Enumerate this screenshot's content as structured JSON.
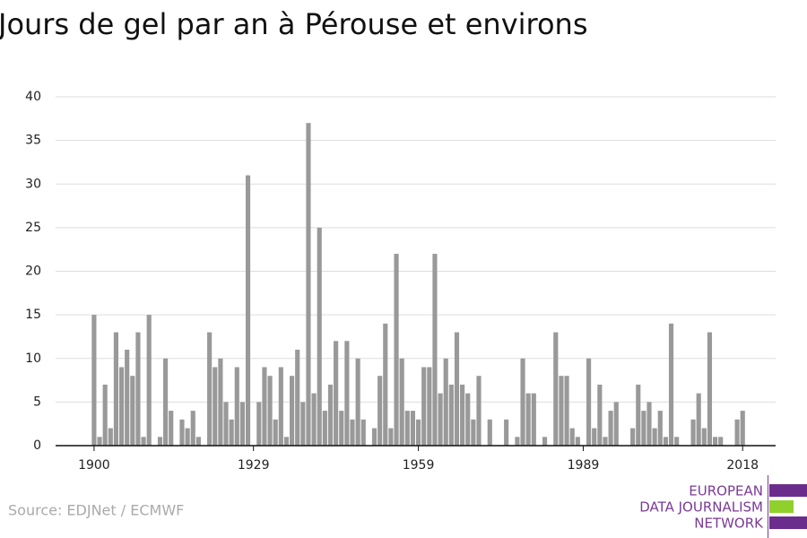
{
  "chart_data": {
    "type": "bar",
    "title": "Jours de gel par an à Pérouse et environs",
    "source": "Source: EDJNet / ECMWF",
    "logo": [
      "EUROPEAN",
      "DATA JOURNALISM",
      "NETWORK"
    ],
    "color": "#999999",
    "grid": true,
    "x": [
      1900,
      1901,
      1902,
      1903,
      1904,
      1905,
      1906,
      1907,
      1908,
      1909,
      1910,
      1911,
      1912,
      1913,
      1914,
      1915,
      1916,
      1917,
      1918,
      1919,
      1920,
      1921,
      1922,
      1923,
      1924,
      1925,
      1926,
      1927,
      1928,
      1929,
      1930,
      1931,
      1932,
      1933,
      1934,
      1935,
      1936,
      1937,
      1938,
      1939,
      1940,
      1941,
      1942,
      1943,
      1944,
      1945,
      1946,
      1947,
      1948,
      1949,
      1950,
      1951,
      1952,
      1953,
      1954,
      1955,
      1956,
      1957,
      1958,
      1959,
      1960,
      1961,
      1962,
      1963,
      1964,
      1965,
      1966,
      1967,
      1968,
      1969,
      1970,
      1971,
      1972,
      1973,
      1974,
      1975,
      1976,
      1977,
      1978,
      1979,
      1980,
      1981,
      1982,
      1983,
      1984,
      1985,
      1986,
      1987,
      1988,
      1989,
      1990,
      1991,
      1992,
      1993,
      1994,
      1995,
      1996,
      1997,
      1998,
      1999,
      2000,
      2001,
      2002,
      2003,
      2004,
      2005,
      2006,
      2007,
      2008,
      2009,
      2010,
      2011,
      2012,
      2013,
      2014,
      2015,
      2016,
      2017,
      2018
    ],
    "values": [
      15,
      1,
      7,
      2,
      13,
      9,
      11,
      8,
      13,
      1,
      15,
      0,
      1,
      10,
      4,
      0,
      3,
      2,
      4,
      1,
      0,
      13,
      9,
      10,
      5,
      3,
      9,
      5,
      31,
      0,
      5,
      9,
      8,
      3,
      9,
      1,
      8,
      11,
      5,
      37,
      6,
      25,
      4,
      7,
      12,
      4,
      12,
      3,
      10,
      3,
      0,
      2,
      8,
      14,
      2,
      22,
      10,
      4,
      4,
      3,
      9,
      9,
      22,
      6,
      10,
      7,
      13,
      7,
      6,
      3,
      8,
      0,
      3,
      0,
      0,
      3,
      0,
      1,
      10,
      6,
      6,
      0,
      1,
      0,
      13,
      8,
      8,
      2,
      1,
      0,
      10,
      2,
      7,
      1,
      4,
      5,
      0,
      0,
      2,
      7,
      4,
      5,
      2,
      4,
      1,
      14,
      1,
      0,
      0,
      3,
      6,
      2,
      13,
      1,
      1,
      0,
      0,
      3,
      4
    ],
    "xlim": [
      1893,
      2024
    ],
    "xticks": [
      1900,
      1929,
      1959,
      1989,
      2018
    ],
    "ylim": [
      0,
      40
    ],
    "yticks": [
      0,
      5,
      10,
      15,
      20,
      25,
      30,
      35,
      40
    ]
  }
}
